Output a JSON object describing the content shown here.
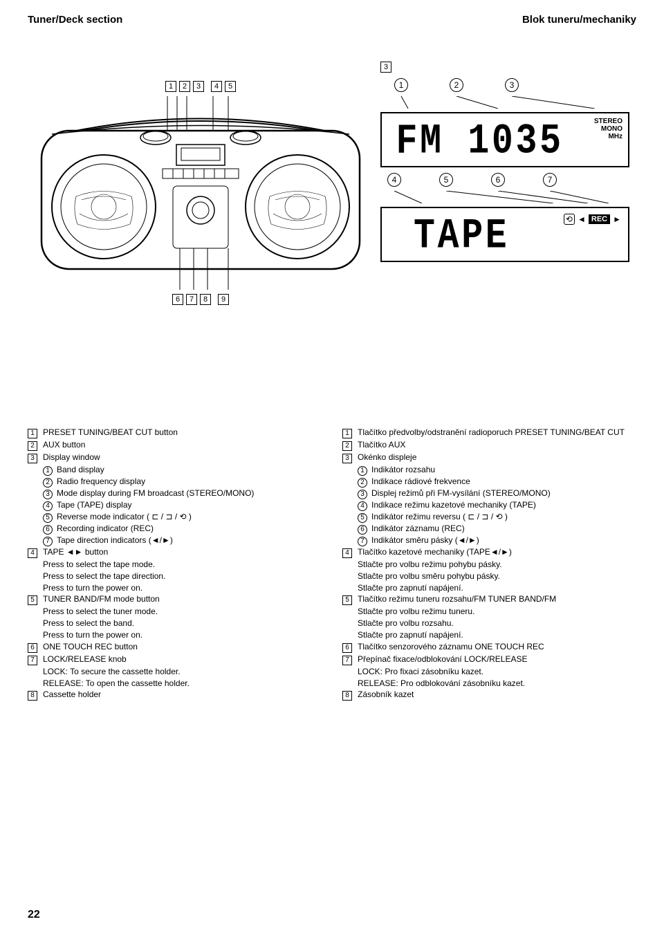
{
  "titles": {
    "left": "Tuner/Deck section",
    "right": "Blok tuneru/mechaniky"
  },
  "top_callouts": [
    "1",
    "2",
    "3",
    "4",
    "5"
  ],
  "bottom_callouts": [
    "6",
    "7",
    "8",
    "9"
  ],
  "display_top_box_label": "3",
  "display_circ_top": [
    "1",
    "2",
    "3"
  ],
  "display_circ_bottom": [
    "4",
    "5",
    "6",
    "7"
  ],
  "lcd1": {
    "text": "FM 1035",
    "side": "STEREO\nMONO\nMHz"
  },
  "lcd2": {
    "text": "TAPE",
    "rec": "REC",
    "sym": "⟲",
    "arrow_l": "◄",
    "arrow_r": "►"
  },
  "left_col": [
    {
      "m": "sq",
      "n": "1",
      "t": "PRESET TUNING/BEAT CUT button"
    },
    {
      "m": "sq",
      "n": "2",
      "t": "AUX button"
    },
    {
      "m": "sq",
      "n": "3",
      "t": "Display window"
    },
    {
      "m": "ci",
      "n": "1",
      "t": "Band display",
      "sub": true
    },
    {
      "m": "ci",
      "n": "2",
      "t": "Radio frequency display",
      "sub": true
    },
    {
      "m": "ci",
      "n": "3",
      "t": "Mode display during FM broadcast (STEREO/MONO)",
      "sub": true
    },
    {
      "m": "ci",
      "n": "4",
      "t": "Tape (TAPE) display",
      "sub": true
    },
    {
      "m": "ci",
      "n": "5",
      "t": "Reverse mode indicator ( ⊏ / ⊐ / ⟲ )",
      "sub": true
    },
    {
      "m": "ci",
      "n": "6",
      "t": "Recording indicator (REC)",
      "sub": true
    },
    {
      "m": "ci",
      "n": "7",
      "t": "Tape direction indicators (◄/►)",
      "sub": true
    },
    {
      "m": "sq",
      "n": "4",
      "t": "TAPE ◄► button"
    },
    {
      "m": "",
      "n": "",
      "t": "Press to select the tape mode.",
      "indent": true
    },
    {
      "m": "",
      "n": "",
      "t": "Press to select the tape direction.",
      "indent": true
    },
    {
      "m": "",
      "n": "",
      "t": "Press to turn the power on.",
      "indent": true
    },
    {
      "m": "sq",
      "n": "5",
      "t": "TUNER BAND/FM mode button"
    },
    {
      "m": "",
      "n": "",
      "t": "Press to select the tuner mode.",
      "indent": true
    },
    {
      "m": "",
      "n": "",
      "t": "Press to select the band.",
      "indent": true
    },
    {
      "m": "",
      "n": "",
      "t": "Press to turn the power on.",
      "indent": true
    },
    {
      "m": "sq",
      "n": "6",
      "t": "ONE TOUCH REC button"
    },
    {
      "m": "sq",
      "n": "7",
      "t": "LOCK/RELEASE knob"
    },
    {
      "m": "",
      "n": "",
      "t": "LOCK: To secure the cassette holder.",
      "indent": true
    },
    {
      "m": "",
      "n": "",
      "t": "RELEASE: To open the cassette holder.",
      "indent": true
    },
    {
      "m": "sq",
      "n": "8",
      "t": "Cassette holder"
    }
  ],
  "right_col": [
    {
      "m": "sq",
      "n": "1",
      "t": "Tlačítko předvolby/odstranění radioporuch PRESET TUNING/BEAT CUT"
    },
    {
      "m": "sq",
      "n": "2",
      "t": "Tlačítko AUX"
    },
    {
      "m": "sq",
      "n": "3",
      "t": "Okénko displeje"
    },
    {
      "m": "ci",
      "n": "1",
      "t": "Indikátor rozsahu",
      "sub": true
    },
    {
      "m": "ci",
      "n": "2",
      "t": "Indikace rádiové frekvence",
      "sub": true
    },
    {
      "m": "ci",
      "n": "3",
      "t": "Displej režimů při FM-vysílání (STEREO/MONO)",
      "sub": true
    },
    {
      "m": "ci",
      "n": "4",
      "t": "Indikace režimu kazetové mechaniky (TAPE)",
      "sub": true
    },
    {
      "m": "ci",
      "n": "5",
      "t": "Indikátor režimu reversu ( ⊏ / ⊐ / ⟲ )",
      "sub": true
    },
    {
      "m": "ci",
      "n": "6",
      "t": "Indikátor záznamu (REC)",
      "sub": true
    },
    {
      "m": "ci",
      "n": "7",
      "t": "Indikátor směru pásky (◄/►)",
      "sub": true
    },
    {
      "m": "sq",
      "n": "4",
      "t": "Tlačítko kazetové mechaniky (TAPE◄/►)"
    },
    {
      "m": "",
      "n": "",
      "t": "Stlačte pro volbu režimu pohybu pásky.",
      "indent": true
    },
    {
      "m": "",
      "n": "",
      "t": "Stlačte pro volbu směru pohybu pásky.",
      "indent": true
    },
    {
      "m": "",
      "n": "",
      "t": "Stlačte pro zapnutí napájení.",
      "indent": true
    },
    {
      "m": "sq",
      "n": "5",
      "t": "Tlačítko režimu tuneru rozsahu/FM TUNER BAND/FM"
    },
    {
      "m": "",
      "n": "",
      "t": "Stlačte pro volbu režimu tuneru.",
      "indent": true
    },
    {
      "m": "",
      "n": "",
      "t": "Stlačte pro volbu  rozsahu.",
      "indent": true
    },
    {
      "m": "",
      "n": "",
      "t": "Stlačte pro zapnutí napájení.",
      "indent": true
    },
    {
      "m": "sq",
      "n": "6",
      "t": "Tlačítko senzorového záznamu ONE TOUCH REC"
    },
    {
      "m": "sq",
      "n": "7",
      "t": "Přepínač fixace/odblokování LOCK/RELEASE"
    },
    {
      "m": "",
      "n": "",
      "t": "LOCK: Pro fixaci zásobníku kazet.",
      "indent": true
    },
    {
      "m": "",
      "n": "",
      "t": "RELEASE: Pro odblokování zásobníku kazet.",
      "indent": true
    },
    {
      "m": "sq",
      "n": "8",
      "t": "Zásobník kazet"
    }
  ],
  "page_number": "22"
}
